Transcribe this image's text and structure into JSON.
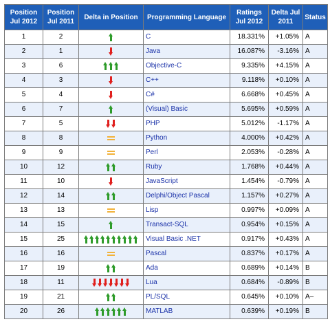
{
  "headers": {
    "pos2012": "Position Jul 2012",
    "pos2011": "Position Jul 2011",
    "delta_pos": "Delta in Position",
    "language": "Programming Language",
    "ratings": "Ratings Jul 2012",
    "delta_ratings": "Delta Jul 2011",
    "status": "Status"
  },
  "colors": {
    "up": "#2e9b2a",
    "down": "#e0201e",
    "same": "#f2b23a",
    "header": "#1f5fb8",
    "link": "#1a31a8"
  },
  "rows": [
    {
      "pos2012": "1",
      "pos2011": "2",
      "change": {
        "dir": "up",
        "count": 1
      },
      "language": "C",
      "ratings": "18.331%",
      "delta": "+1.05%",
      "status": "A"
    },
    {
      "pos2012": "2",
      "pos2011": "1",
      "change": {
        "dir": "down",
        "count": 1
      },
      "language": "Java",
      "ratings": "16.087%",
      "delta": "-3.16%",
      "status": "A"
    },
    {
      "pos2012": "3",
      "pos2011": "6",
      "change": {
        "dir": "up",
        "count": 3
      },
      "language": "Objective-C",
      "ratings": "9.335%",
      "delta": "+4.15%",
      "status": "A"
    },
    {
      "pos2012": "4",
      "pos2011": "3",
      "change": {
        "dir": "down",
        "count": 1
      },
      "language": "C++",
      "ratings": "9.118%",
      "delta": "+0.10%",
      "status": "A"
    },
    {
      "pos2012": "5",
      "pos2011": "4",
      "change": {
        "dir": "down",
        "count": 1
      },
      "language": "C#",
      "ratings": "6.668%",
      "delta": "+0.45%",
      "status": "A"
    },
    {
      "pos2012": "6",
      "pos2011": "7",
      "change": {
        "dir": "up",
        "count": 1
      },
      "language": "(Visual) Basic",
      "ratings": "5.695%",
      "delta": "+0.59%",
      "status": "A"
    },
    {
      "pos2012": "7",
      "pos2011": "5",
      "change": {
        "dir": "down",
        "count": 2
      },
      "language": "PHP",
      "ratings": "5.012%",
      "delta": "-1.17%",
      "status": "A"
    },
    {
      "pos2012": "8",
      "pos2011": "8",
      "change": {
        "dir": "same",
        "count": 1
      },
      "language": "Python",
      "ratings": "4.000%",
      "delta": "+0.42%",
      "status": "A"
    },
    {
      "pos2012": "9",
      "pos2011": "9",
      "change": {
        "dir": "same",
        "count": 1
      },
      "language": "Perl",
      "ratings": "2.053%",
      "delta": "-0.28%",
      "status": "A"
    },
    {
      "pos2012": "10",
      "pos2011": "12",
      "change": {
        "dir": "up",
        "count": 2
      },
      "language": "Ruby",
      "ratings": "1.768%",
      "delta": "+0.44%",
      "status": "A"
    },
    {
      "pos2012": "11",
      "pos2011": "10",
      "change": {
        "dir": "down",
        "count": 1
      },
      "language": "JavaScript",
      "ratings": "1.454%",
      "delta": "-0.79%",
      "status": "A"
    },
    {
      "pos2012": "12",
      "pos2011": "14",
      "change": {
        "dir": "up",
        "count": 2
      },
      "language": "Delphi/Object Pascal",
      "ratings": "1.157%",
      "delta": "+0.27%",
      "status": "A"
    },
    {
      "pos2012": "13",
      "pos2011": "13",
      "change": {
        "dir": "same",
        "count": 1
      },
      "language": "Lisp",
      "ratings": "0.997%",
      "delta": "+0.09%",
      "status": "A"
    },
    {
      "pos2012": "14",
      "pos2011": "15",
      "change": {
        "dir": "up",
        "count": 1
      },
      "language": "Transact-SQL",
      "ratings": "0.954%",
      "delta": "+0.15%",
      "status": "A"
    },
    {
      "pos2012": "15",
      "pos2011": "25",
      "change": {
        "dir": "up",
        "count": 10
      },
      "language": "Visual Basic .NET",
      "ratings": "0.917%",
      "delta": "+0.43%",
      "status": "A"
    },
    {
      "pos2012": "16",
      "pos2011": "16",
      "change": {
        "dir": "same",
        "count": 1
      },
      "language": "Pascal",
      "ratings": "0.837%",
      "delta": "+0.17%",
      "status": "A"
    },
    {
      "pos2012": "17",
      "pos2011": "19",
      "change": {
        "dir": "up",
        "count": 2
      },
      "language": "Ada",
      "ratings": "0.689%",
      "delta": "+0.14%",
      "status": "B"
    },
    {
      "pos2012": "18",
      "pos2011": "11",
      "change": {
        "dir": "down",
        "count": 7
      },
      "language": "Lua",
      "ratings": "0.684%",
      "delta": "-0.89%",
      "status": "B"
    },
    {
      "pos2012": "19",
      "pos2011": "21",
      "change": {
        "dir": "up",
        "count": 2
      },
      "language": "PL/SQL",
      "ratings": "0.645%",
      "delta": "+0.10%",
      "status": "A–"
    },
    {
      "pos2012": "20",
      "pos2011": "26",
      "change": {
        "dir": "up",
        "count": 6
      },
      "language": "MATLAB",
      "ratings": "0.639%",
      "delta": "+0.19%",
      "status": "B"
    }
  ]
}
